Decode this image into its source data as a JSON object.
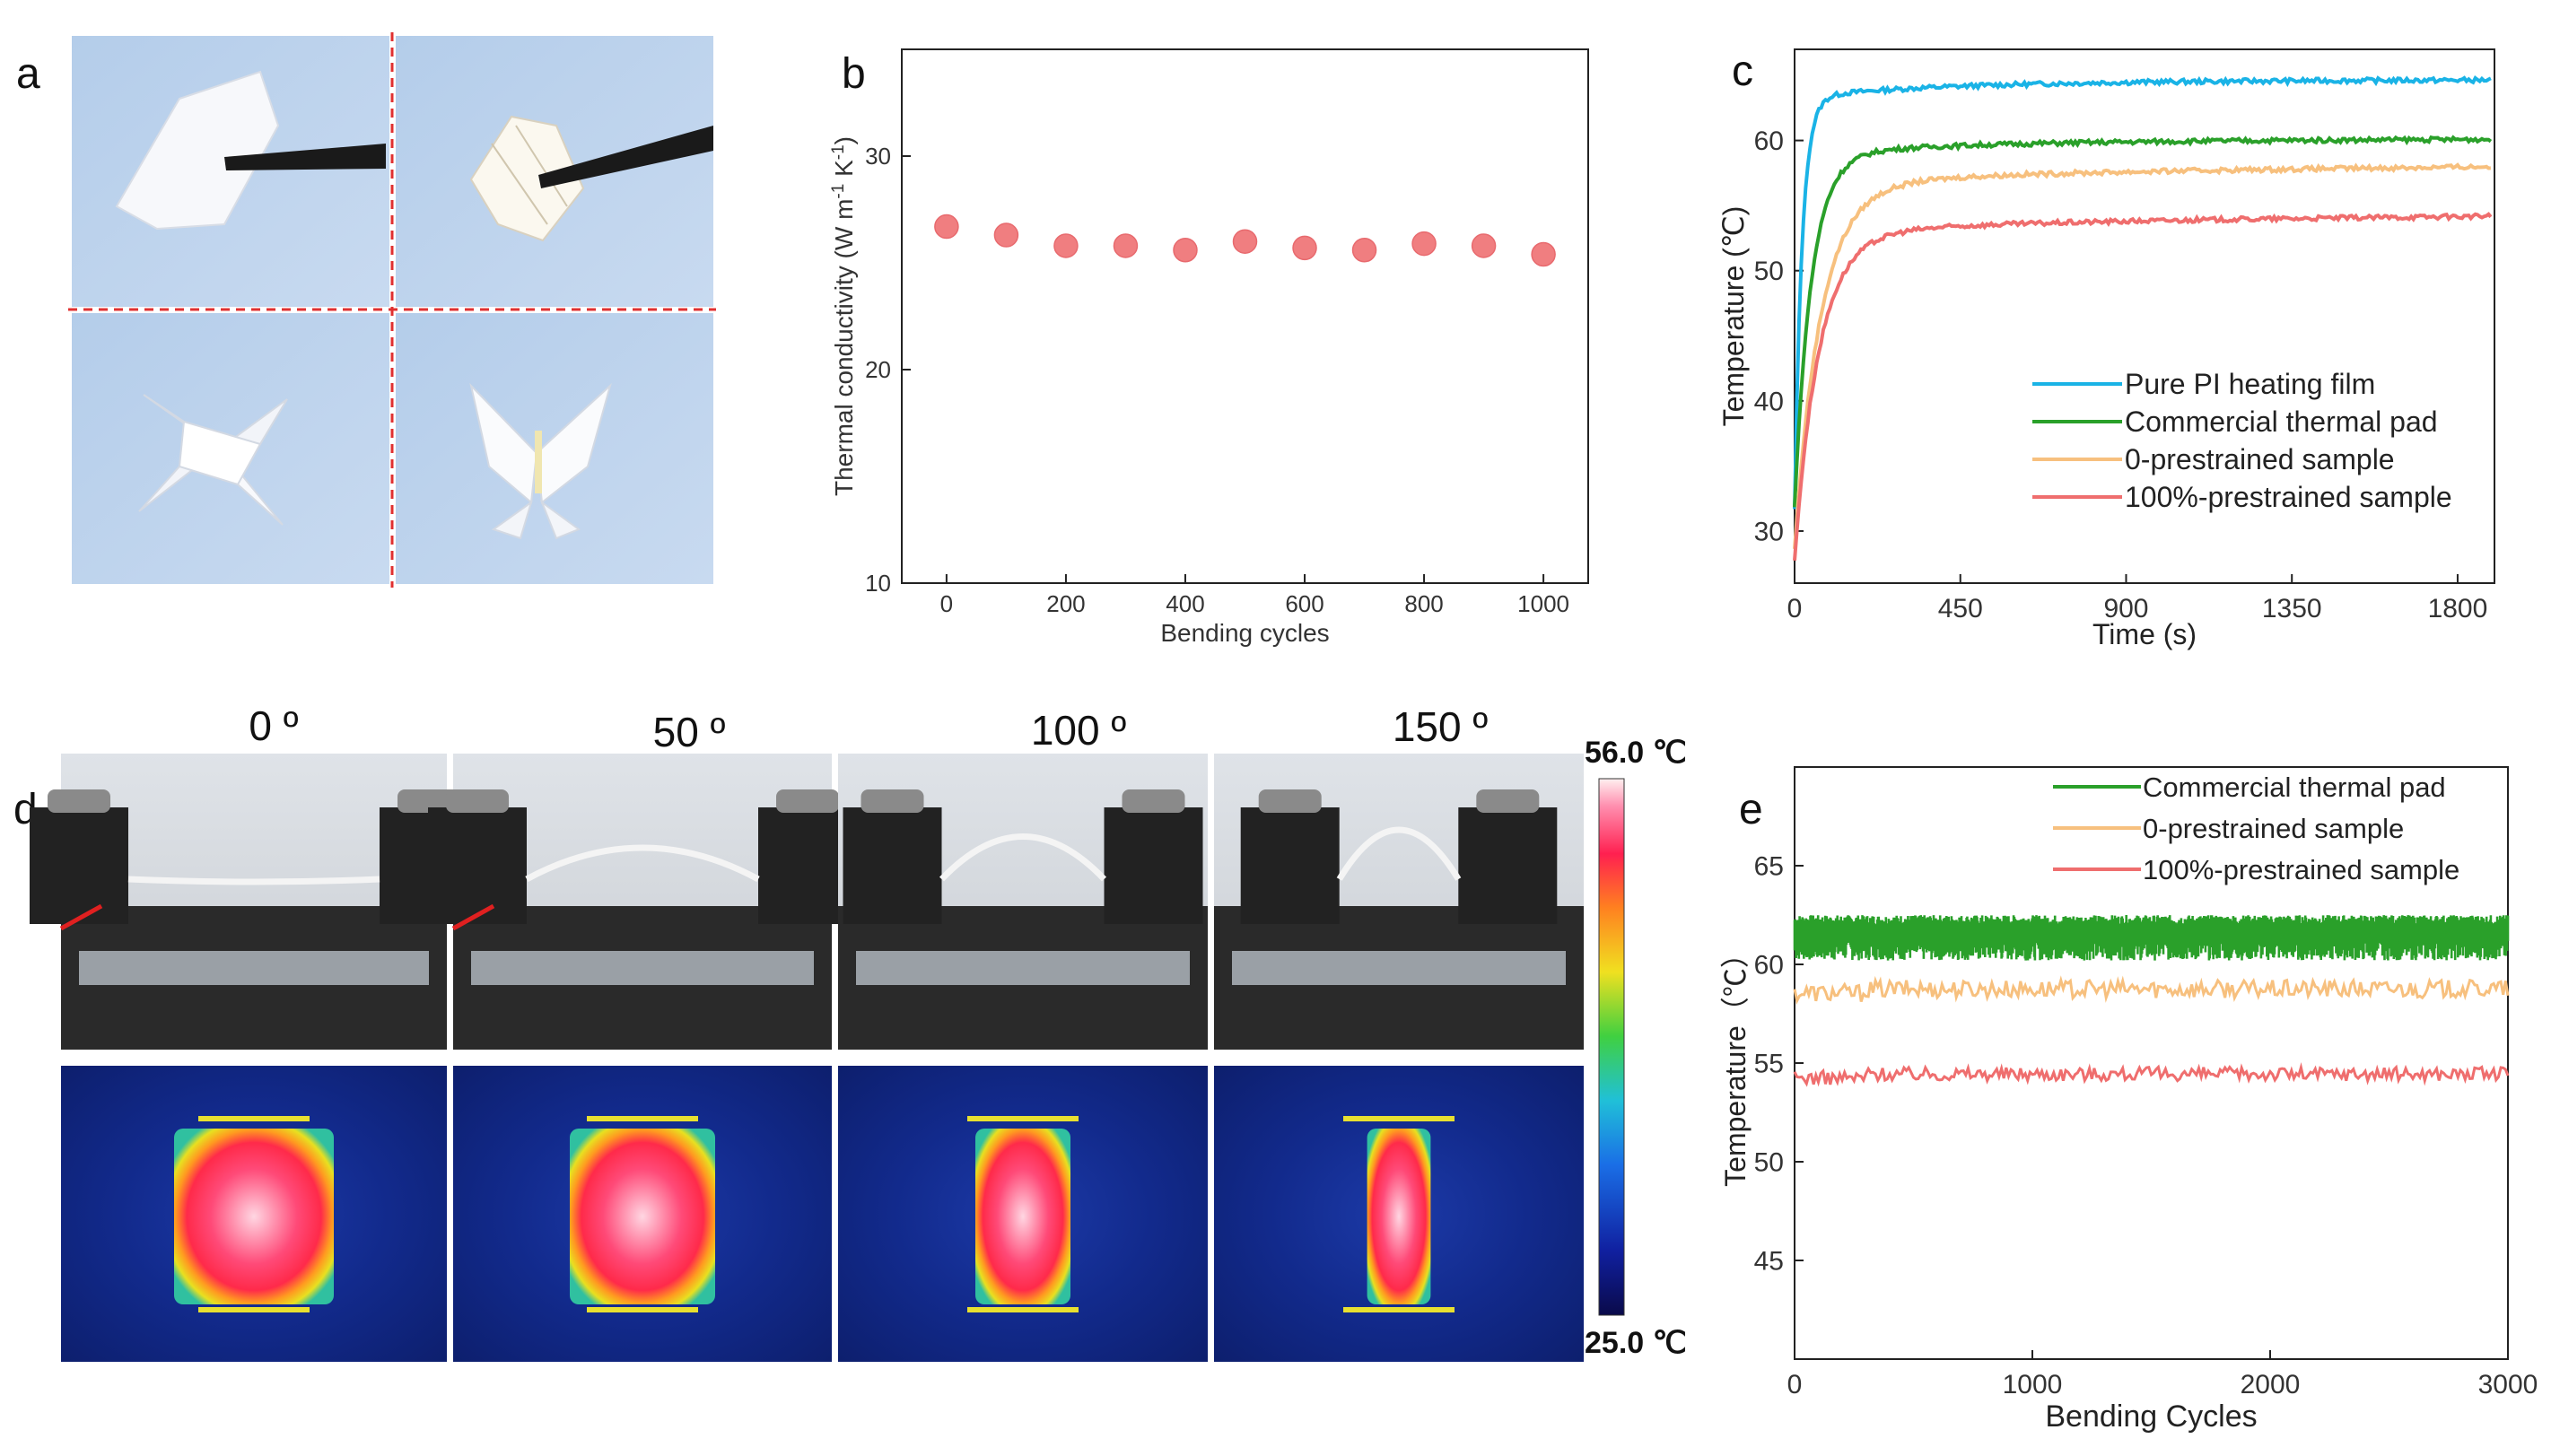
{
  "panel_labels": {
    "a": "a",
    "b": "b",
    "c": "c",
    "d": "d",
    "e": "e"
  },
  "panel_d": {
    "angles": [
      "0 º",
      "50 º",
      "100 º",
      "150 º"
    ],
    "colorbar": {
      "max_label": "56.0 ℃",
      "min_label": "25.0 ℃"
    }
  },
  "colors": {
    "pink_marker": "#f07e80",
    "blue": "#1ab3e6",
    "green": "#2aa02a",
    "orange": "#f7c07e",
    "red": "#ef6e6e"
  },
  "chart_data": [
    {
      "id": "b",
      "type": "scatter",
      "title": "",
      "xlabel": "Bending cycles",
      "ylabel": "Thermal conductivity (W m⁻¹ K⁻¹)",
      "ylabel_main": "Thermal conductivity (W m",
      "ylabel_sup1": "-1",
      "ylabel_mid": " K",
      "ylabel_sup2": "-1",
      "ylabel_end": ")",
      "xlim": [
        -75,
        1075
      ],
      "ylim": [
        10,
        35
      ],
      "xticks": [
        0,
        200,
        400,
        600,
        800,
        1000
      ],
      "yticks": [
        10,
        20,
        30
      ],
      "x": [
        0,
        100,
        200,
        300,
        400,
        500,
        600,
        700,
        800,
        900,
        1000
      ],
      "y": [
        26.7,
        26.3,
        25.8,
        25.8,
        25.6,
        26.0,
        25.7,
        25.6,
        25.9,
        25.8,
        25.4
      ]
    },
    {
      "id": "c",
      "type": "line",
      "xlabel": "Time (s)",
      "ylabel": "Temperature (℃)",
      "xlim": [
        0,
        1900
      ],
      "ylim": [
        26,
        67
      ],
      "xticks": [
        0,
        450,
        900,
        1350,
        1800
      ],
      "yticks": [
        30,
        40,
        50,
        60
      ],
      "legend_position": "lower-right",
      "series": [
        {
          "name": "Pure PI heating film",
          "color": "#1ab3e6",
          "start": 33,
          "plateau": 64.6,
          "tau": 20,
          "rise": 0.005
        },
        {
          "name": "Commercial thermal pad",
          "color": "#2aa02a",
          "start": 33,
          "plateau": 60.0,
          "tau": 45,
          "rise": 0.01
        },
        {
          "name": "0-prestrained sample",
          "color": "#f7c07e",
          "start": 30,
          "plateau": 57.7,
          "tau": 70,
          "rise": 0.03
        },
        {
          "name": "100%-prestrained sample",
          "color": "#ef6e6e",
          "start": 29,
          "plateau": 53.9,
          "tau": 65,
          "rise": 0.03
        }
      ]
    },
    {
      "id": "e",
      "type": "line",
      "xlabel": "Bending Cycles",
      "ylabel": "Temperature（℃）",
      "xlim": [
        0,
        3000
      ],
      "ylim": [
        40,
        70
      ],
      "xticks": [
        0,
        1000,
        2000,
        3000
      ],
      "yticks": [
        45,
        50,
        55,
        60,
        65
      ],
      "legend_position": "top-right",
      "series": [
        {
          "name": "Commercial thermal pad",
          "color": "#2aa02a",
          "mean": 61.5,
          "band": [
            60.2,
            62.5
          ]
        },
        {
          "name": "0-prestrained sample",
          "color": "#f7c07e",
          "mean": 58.8,
          "band": [
            58.3,
            59.2
          ]
        },
        {
          "name": "100%-prestrained sample",
          "color": "#ef6e6e",
          "mean": 54.4,
          "band": [
            54.1,
            54.8
          ]
        }
      ]
    }
  ]
}
